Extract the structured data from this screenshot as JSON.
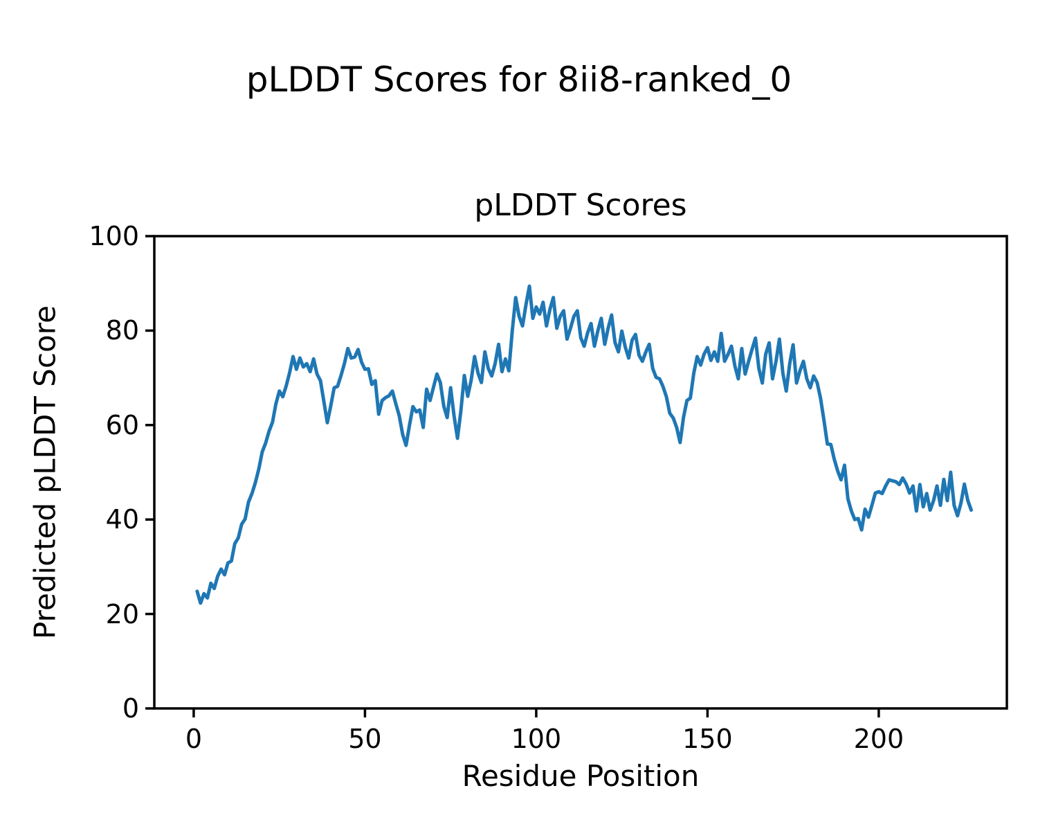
{
  "figure": {
    "suptitle": "pLDDT Scores for 8ii8-ranked_0",
    "background_color": "#ffffff"
  },
  "chart_data": {
    "type": "line",
    "title": "pLDDT Scores",
    "xlabel": "Residue Position",
    "ylabel": "Predicted pLDDT Score",
    "line_color": "#1f77b4",
    "axis_color": "#000000",
    "grid": false,
    "legend_position": "none",
    "x_start": 1,
    "x_step": 1,
    "xlim": [
      -11.5,
      237.4
    ],
    "ylim": [
      0,
      100
    ],
    "xticks": [
      0,
      50,
      100,
      150,
      200
    ],
    "yticks": [
      0,
      20,
      40,
      60,
      80,
      100
    ],
    "values": [
      24.8,
      22.3,
      24.3,
      23.4,
      26.5,
      25.4,
      28.0,
      29.5,
      28.3,
      30.8,
      31.2,
      34.9,
      36.1,
      39.0,
      40.1,
      43.7,
      45.5,
      47.8,
      50.7,
      54.3,
      56.2,
      58.7,
      60.6,
      64.5,
      67.2,
      66.0,
      68.3,
      71.1,
      74.5,
      71.8,
      74.2,
      72.3,
      73.0,
      71.3,
      74.0,
      70.8,
      69.4,
      65.0,
      60.5,
      64.0,
      67.9,
      68.2,
      70.5,
      73.0,
      76.2,
      74.2,
      74.4,
      76.0,
      73.3,
      71.8,
      71.9,
      68.6,
      69.4,
      62.3,
      65.2,
      65.8,
      66.2,
      67.2,
      64.5,
      62.0,
      58.0,
      55.7,
      60.0,
      63.9,
      62.8,
      63.2,
      59.5,
      67.6,
      65.2,
      68.0,
      70.8,
      69.0,
      64.0,
      61.6,
      67.9,
      62.0,
      57.2,
      63.0,
      70.5,
      66.1,
      69.5,
      74.5,
      71.0,
      69.0,
      75.5,
      72.0,
      70.4,
      73.0,
      77.1,
      71.3,
      74.0,
      71.5,
      80.0,
      87.0,
      83.0,
      81.0,
      85.5,
      89.4,
      82.6,
      85.0,
      83.5,
      86.0,
      81.0,
      84.5,
      87.0,
      80.5,
      83.0,
      84.2,
      78.2,
      80.5,
      83.0,
      84.2,
      78.5,
      76.7,
      79.5,
      81.5,
      76.7,
      80.0,
      82.6,
      77.1,
      80.5,
      83.3,
      77.5,
      75.5,
      79.9,
      76.5,
      74.2,
      78.0,
      79.2,
      74.8,
      73.5,
      75.5,
      77.1,
      72.0,
      70.1,
      69.8,
      68.2,
      66.0,
      62.5,
      61.5,
      59.5,
      56.3,
      61.6,
      65.2,
      65.7,
      71.0,
      74.5,
      72.7,
      75.0,
      76.4,
      73.7,
      75.5,
      73.5,
      79.4,
      73.5,
      75.0,
      76.7,
      72.5,
      69.8,
      76.2,
      70.8,
      73.5,
      76.0,
      78.4,
      72.0,
      68.9,
      75.0,
      77.4,
      69.8,
      73.5,
      78.2,
      71.0,
      67.2,
      73.0,
      77.0,
      68.9,
      71.5,
      73.5,
      69.8,
      67.9,
      70.4,
      69.0,
      65.7,
      61.0,
      56.0,
      55.9,
      52.8,
      50.3,
      48.4,
      51.5,
      44.4,
      41.8,
      40.0,
      40.2,
      37.8,
      42.2,
      40.5,
      43.0,
      45.6,
      45.9,
      45.5,
      47.1,
      48.4,
      48.2,
      48.0,
      47.4,
      48.8,
      47.5,
      45.6,
      47.1,
      41.8,
      47.4,
      42.7,
      45.5,
      42.0,
      44.0,
      47.1,
      43.0,
      48.5,
      44.0,
      50.0,
      43.0,
      40.8,
      43.5,
      47.5,
      44.0,
      42.0
    ]
  }
}
